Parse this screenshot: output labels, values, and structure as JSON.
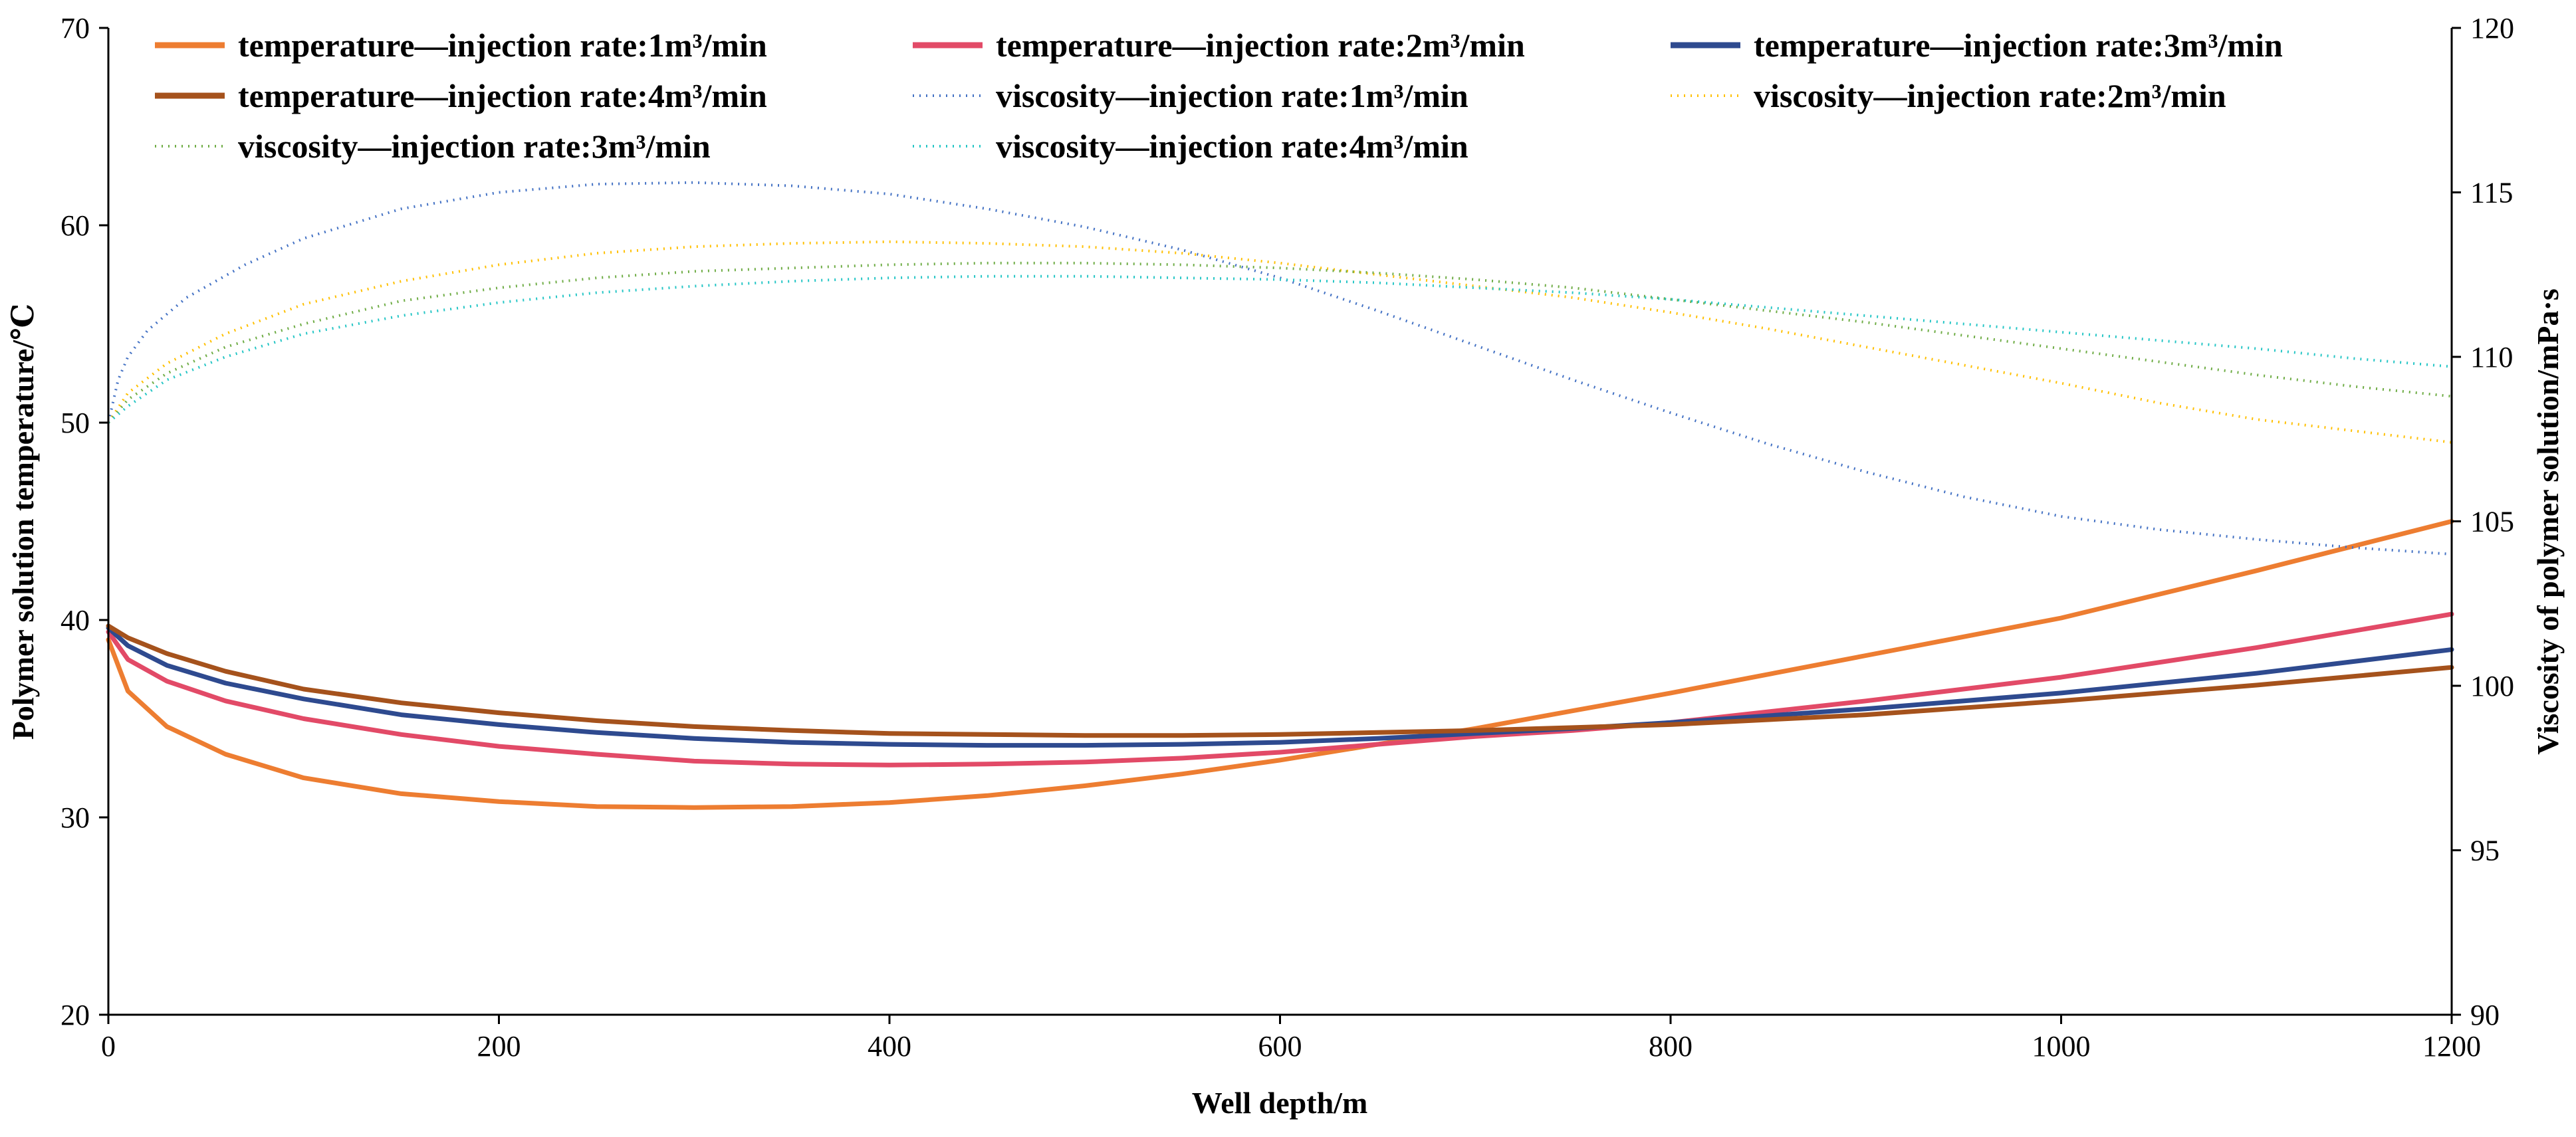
{
  "chart_data": {
    "type": "line",
    "title": "",
    "xlabel": "Well depth/m",
    "ylabel_left": "Polymer solution temperature/℃",
    "ylabel_right": "Viscosity of polymer solution/mPa·s",
    "xlim": [
      0,
      1200
    ],
    "ylim_left": [
      20,
      70
    ],
    "ylim_right": [
      90,
      120
    ],
    "x_ticks": [
      "0",
      "200",
      "400",
      "600",
      "800",
      "1000",
      "1200"
    ],
    "y_left_ticks": [
      "20",
      "30",
      "40",
      "50",
      "60",
      "70"
    ],
    "y_right_ticks": [
      "90",
      "95",
      "100",
      "105",
      "110",
      "115",
      "120"
    ],
    "legend_position": "top",
    "series": [
      {
        "name": "temperature—injection rate:1m³/min",
        "axis": "left",
        "style": "solid",
        "color": "#ED7D31",
        "x": [
          0,
          10,
          30,
          60,
          100,
          150,
          200,
          250,
          300,
          350,
          400,
          450,
          500,
          550,
          600,
          650,
          700,
          750,
          800,
          900,
          1000,
          1100,
          1200
        ],
        "y": [
          39.0,
          36.4,
          34.6,
          33.2,
          32.0,
          31.2,
          30.8,
          30.55,
          30.5,
          30.55,
          30.75,
          31.1,
          31.6,
          32.2,
          32.9,
          33.7,
          34.5,
          35.4,
          36.3,
          38.2,
          40.1,
          42.5,
          45.0
        ]
      },
      {
        "name": "temperature—injection rate:2m³/min",
        "axis": "left",
        "style": "solid",
        "color": "#E24A67",
        "x": [
          0,
          10,
          30,
          60,
          100,
          150,
          200,
          250,
          300,
          350,
          400,
          450,
          500,
          550,
          600,
          650,
          700,
          750,
          800,
          900,
          1000,
          1100,
          1200
        ],
        "y": [
          39.4,
          38.0,
          36.9,
          35.9,
          35.0,
          34.2,
          33.6,
          33.2,
          32.85,
          32.7,
          32.65,
          32.7,
          32.8,
          33.0,
          33.3,
          33.7,
          34.1,
          34.4,
          34.8,
          35.9,
          37.1,
          38.6,
          40.3
        ]
      },
      {
        "name": "temperature—injection rate:3m³/min",
        "axis": "left",
        "style": "solid",
        "color": "#2E4A8F",
        "x": [
          0,
          10,
          30,
          60,
          100,
          150,
          200,
          250,
          300,
          350,
          400,
          450,
          500,
          550,
          600,
          650,
          700,
          750,
          800,
          900,
          1000,
          1100,
          1200
        ],
        "y": [
          39.6,
          38.7,
          37.7,
          36.8,
          36.0,
          35.2,
          34.7,
          34.3,
          34.0,
          33.8,
          33.7,
          33.65,
          33.65,
          33.7,
          33.8,
          34.0,
          34.25,
          34.5,
          34.8,
          35.5,
          36.3,
          37.3,
          38.5
        ]
      },
      {
        "name": "temperature—injection rate:4m³/min",
        "axis": "left",
        "style": "solid",
        "color": "#A5521C",
        "x": [
          0,
          10,
          30,
          60,
          100,
          150,
          200,
          250,
          300,
          350,
          400,
          450,
          500,
          550,
          600,
          650,
          700,
          750,
          800,
          900,
          1000,
          1100,
          1200
        ],
        "y": [
          39.7,
          39.1,
          38.3,
          37.4,
          36.5,
          35.8,
          35.3,
          34.9,
          34.6,
          34.4,
          34.25,
          34.2,
          34.15,
          34.15,
          34.2,
          34.3,
          34.4,
          34.55,
          34.7,
          35.2,
          35.9,
          36.7,
          37.6
        ]
      },
      {
        "name": "viscosity—injection rate:1m³/min",
        "axis": "right",
        "style": "dotted",
        "color": "#4472C4",
        "x": [
          0,
          5,
          10,
          20,
          40,
          70,
          100,
          150,
          200,
          250,
          300,
          350,
          400,
          450,
          500,
          550,
          600,
          650,
          700,
          750,
          800,
          850,
          900,
          950,
          1000,
          1050,
          1100,
          1150,
          1200
        ],
        "y": [
          108.0,
          109.3,
          110.0,
          110.8,
          111.8,
          112.8,
          113.6,
          114.5,
          115.0,
          115.25,
          115.3,
          115.2,
          114.95,
          114.5,
          113.95,
          113.25,
          112.4,
          111.4,
          110.35,
          109.3,
          108.3,
          107.35,
          106.5,
          105.75,
          105.15,
          104.75,
          104.45,
          104.2,
          104.0
        ]
      },
      {
        "name": "viscosity—injection rate:2m³/min",
        "axis": "right",
        "style": "dotted",
        "color": "#FFC000",
        "x": [
          0,
          10,
          30,
          60,
          100,
          150,
          200,
          250,
          300,
          350,
          400,
          450,
          500,
          550,
          600,
          650,
          700,
          750,
          800,
          850,
          900,
          950,
          1000,
          1050,
          1100,
          1150,
          1200
        ],
        "y": [
          108.0,
          108.9,
          109.8,
          110.7,
          111.6,
          112.3,
          112.8,
          113.15,
          113.35,
          113.45,
          113.5,
          113.45,
          113.35,
          113.15,
          112.85,
          112.5,
          112.15,
          111.8,
          111.35,
          110.85,
          110.3,
          109.75,
          109.2,
          108.6,
          108.1,
          107.75,
          107.4
        ]
      },
      {
        "name": "viscosity—injection rate:3m³/min",
        "axis": "right",
        "style": "dotted",
        "color": "#70AD47",
        "x": [
          0,
          10,
          30,
          60,
          100,
          150,
          200,
          250,
          300,
          350,
          400,
          450,
          500,
          550,
          600,
          650,
          700,
          750,
          800,
          850,
          900,
          950,
          1000,
          1050,
          1100,
          1150,
          1200
        ],
        "y": [
          108.0,
          108.7,
          109.5,
          110.3,
          111.0,
          111.7,
          112.1,
          112.4,
          112.6,
          112.7,
          112.8,
          112.85,
          112.85,
          112.8,
          112.7,
          112.55,
          112.35,
          112.1,
          111.75,
          111.4,
          111.05,
          110.65,
          110.25,
          109.85,
          109.45,
          109.1,
          108.8
        ]
      },
      {
        "name": "viscosity—injection rate:4m³/min",
        "axis": "right",
        "style": "dotted",
        "color": "#26C6C6",
        "x": [
          0,
          10,
          30,
          60,
          100,
          150,
          200,
          250,
          300,
          350,
          400,
          450,
          500,
          550,
          600,
          650,
          700,
          750,
          800,
          850,
          900,
          950,
          1000,
          1050,
          1100,
          1150,
          1200
        ],
        "y": [
          108.0,
          108.5,
          109.3,
          110.0,
          110.7,
          111.25,
          111.65,
          111.95,
          112.15,
          112.3,
          112.4,
          112.45,
          112.45,
          112.4,
          112.35,
          112.25,
          112.1,
          111.95,
          111.75,
          111.5,
          111.25,
          111.0,
          110.75,
          110.5,
          110.25,
          109.95,
          109.7
        ]
      }
    ]
  }
}
